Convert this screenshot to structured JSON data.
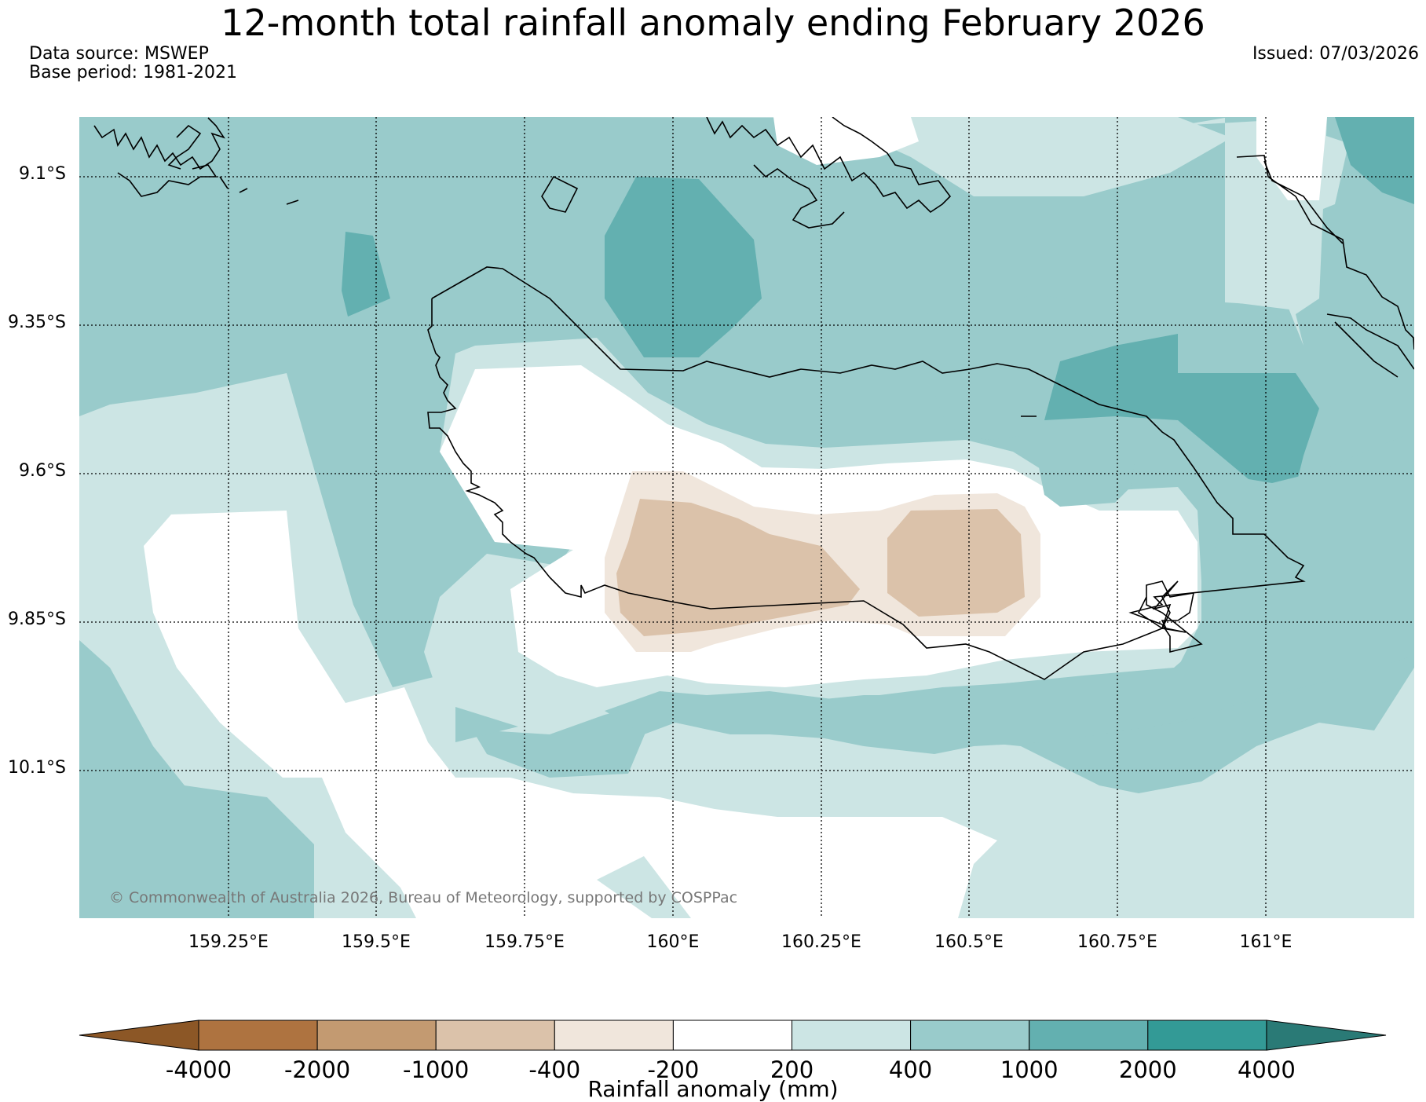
{
  "header": {
    "title": "12-month total rainfall anomaly ending February 2026",
    "source": "Data source: MSWEP",
    "base_period": "Base period: 1981-2021",
    "issued": "Issued: 07/03/2026"
  },
  "map": {
    "lat_labels": [
      "9.1°S",
      "9.35°S",
      "9.6°S",
      "9.85°S",
      "10.1°S"
    ],
    "lon_labels": [
      "159.25°E",
      "159.5°E",
      "159.75°E",
      "160°E",
      "160.25°E",
      "160.5°E",
      "160.75°E",
      "161°E"
    ],
    "copyright": "© Commonwealth of Australia 2026, Bureau of Meteorology, supported by COSPPac"
  },
  "colorbar": {
    "title": "Rainfall anomaly (mm)",
    "tick_labels": [
      "-4000",
      "-2000",
      "-1000",
      "-400",
      "-200",
      "200",
      "400",
      "1000",
      "2000",
      "4000"
    ],
    "colors": [
      "#ae7340",
      "#c39a71",
      "#dbc2aa",
      "#f0e6dc",
      "#ffffff",
      "#cce5e4",
      "#99cbcb",
      "#63b0b0",
      "#339a96"
    ],
    "under_color": "#8c5726",
    "over_color": "#2a7a76"
  }
}
